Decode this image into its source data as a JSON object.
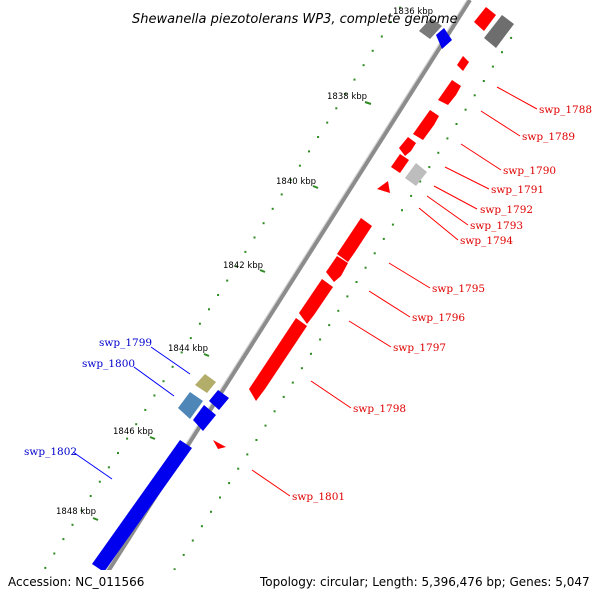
{
  "title": "Shewanella piezotolerans WP3, complete genome",
  "footer": {
    "accession": "Accession: NC_011566",
    "topology": "Topology: circular; Length: 5,396,476 bp; Genes: 5,047"
  },
  "colors": {
    "reverse_strand": "#ff0000",
    "forward_strand": "#0000ff",
    "backbone": "#8c8c8c",
    "tick_mark": "#2e8b22",
    "label_reverse": "#e00000",
    "label_forward": "#0000cc"
  },
  "kbp_marks": [
    {
      "label": "1836 kbp"
    },
    {
      "label": "1838 kbp"
    },
    {
      "label": "1840 kbp"
    },
    {
      "label": "1842 kbp"
    },
    {
      "label": "1844 kbp"
    },
    {
      "label": "1846 kbp"
    },
    {
      "label": "1848 kbp"
    }
  ],
  "gene_labels": [
    {
      "name": "swp_1788",
      "strand": "reverse"
    },
    {
      "name": "swp_1789",
      "strand": "reverse"
    },
    {
      "name": "swp_1790",
      "strand": "reverse"
    },
    {
      "name": "swp_1791",
      "strand": "reverse"
    },
    {
      "name": "swp_1792",
      "strand": "reverse"
    },
    {
      "name": "swp_1793",
      "strand": "reverse"
    },
    {
      "name": "swp_1794",
      "strand": "reverse"
    },
    {
      "name": "swp_1795",
      "strand": "reverse"
    },
    {
      "name": "swp_1796",
      "strand": "reverse"
    },
    {
      "name": "swp_1797",
      "strand": "reverse"
    },
    {
      "name": "swp_1798",
      "strand": "reverse"
    },
    {
      "name": "swp_1801",
      "strand": "reverse"
    },
    {
      "name": "swp_1799",
      "strand": "forward"
    },
    {
      "name": "swp_1800",
      "strand": "forward"
    },
    {
      "name": "swp_1802",
      "strand": "forward"
    }
  ]
}
